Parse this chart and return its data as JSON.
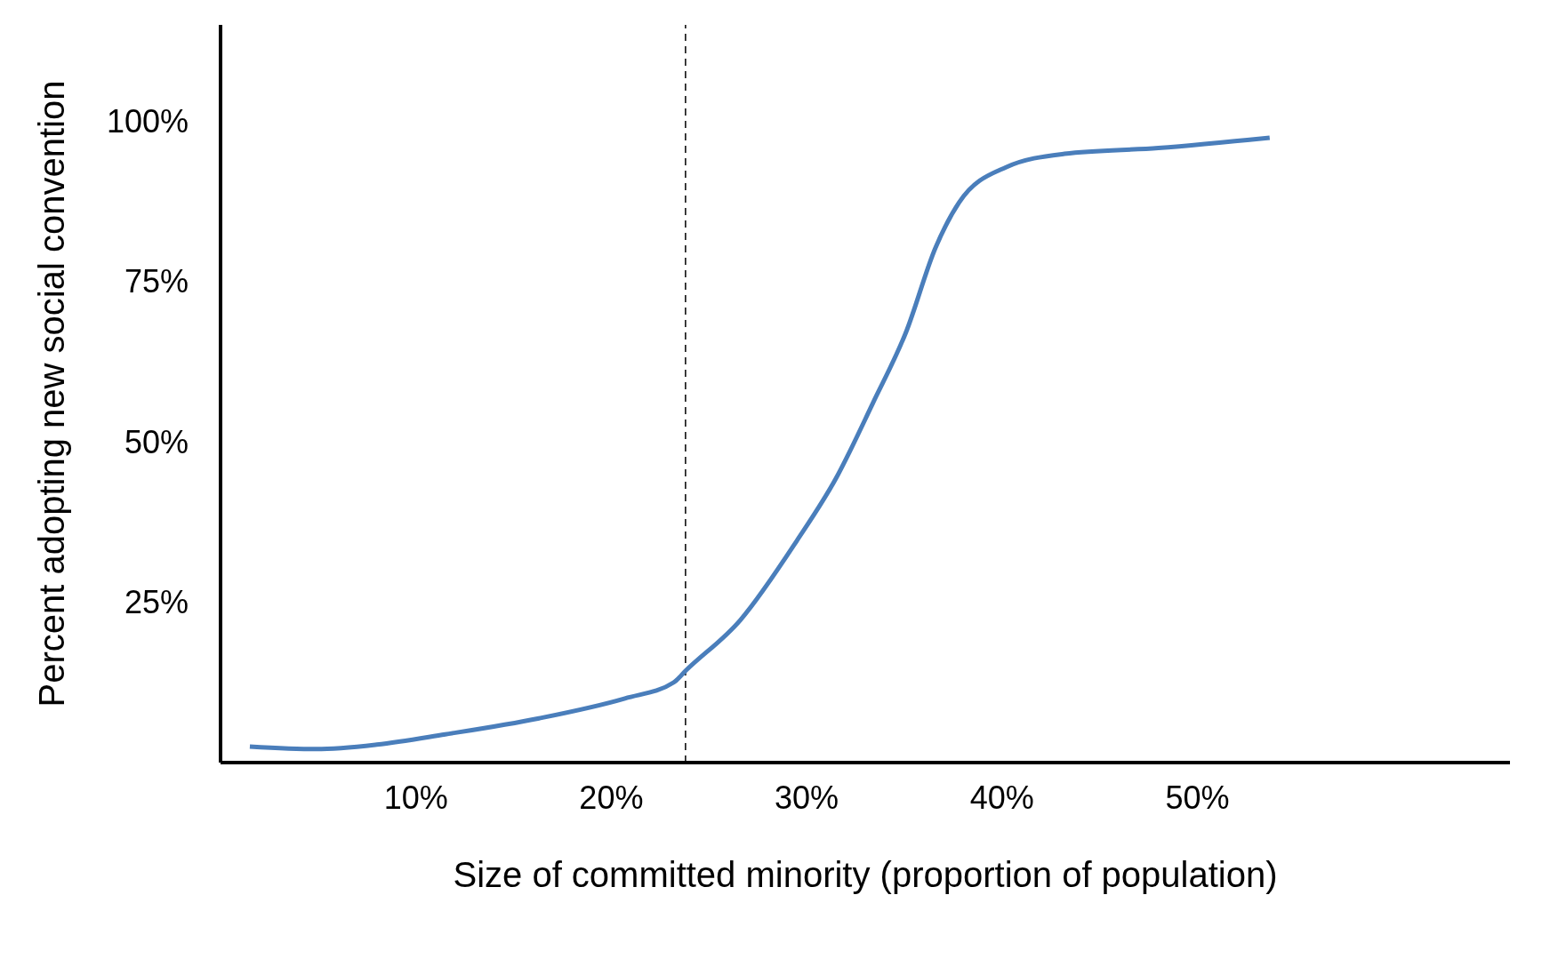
{
  "chart_data": {
    "type": "line",
    "xlabel": "Size of committed minority (proportion of population)",
    "ylabel": "Percent adopting new social convention",
    "x": [
      1.5,
      4.9,
      8.0,
      11.5,
      16.3,
      20.7,
      23.2,
      23.8,
      26.6,
      29.5,
      31.5,
      33.4,
      35.1,
      36.6,
      37.8,
      40.2,
      43.2,
      48.0,
      53.7
    ],
    "series": [
      {
        "color": "#4a7ebb",
        "values": [
          2.5,
          2.1,
          2.8,
          4.4,
          6.9,
          10.0,
          12.5,
          14.3,
          22.2,
          34.6,
          44.3,
          56.1,
          67.2,
          80.3,
          87.3,
          92.8,
          94.9,
          95.8,
          97.4
        ]
      }
    ],
    "xlim": [
      0,
      66
    ],
    "ylim": [
      0,
      115
    ],
    "xticks": [
      {
        "value": 10,
        "label": "10%"
      },
      {
        "value": 20,
        "label": "20%"
      },
      {
        "value": 30,
        "label": "30%"
      },
      {
        "value": 40,
        "label": "40%"
      },
      {
        "value": 50,
        "label": "50%"
      }
    ],
    "yticks": [
      {
        "value": 25,
        "label": "25%"
      },
      {
        "value": 50,
        "label": "50%"
      },
      {
        "value": 75,
        "label": "75%"
      },
      {
        "value": 100,
        "label": "100%"
      }
    ],
    "ref_lines": [
      {
        "axis": "x",
        "value": 23.8,
        "color": "#000000",
        "line_style": "dashed"
      }
    ],
    "grid": false,
    "legend": false,
    "marker": "none",
    "line_style": "solid"
  }
}
